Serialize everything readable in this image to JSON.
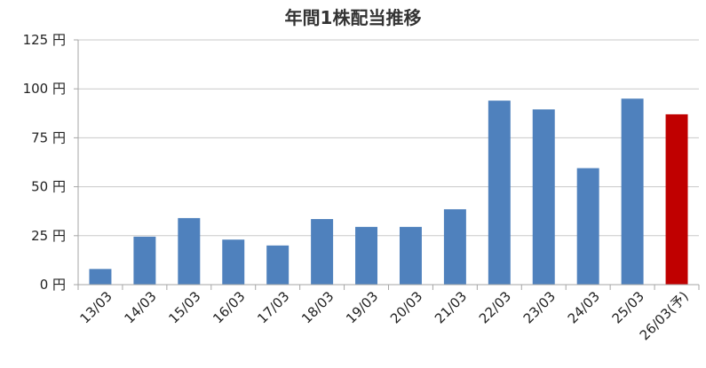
{
  "chart_data": {
    "type": "bar",
    "title": "年間1株配当推移",
    "xlabel": "",
    "ylabel": "",
    "categories": [
      "13/03",
      "14/03",
      "15/03",
      "16/03",
      "17/03",
      "18/03",
      "19/03",
      "20/03",
      "21/03",
      "22/03",
      "23/03",
      "24/03",
      "25/03",
      "26/03(予)"
    ],
    "values": [
      8,
      24.5,
      34,
      23,
      20,
      33.5,
      29.5,
      29.5,
      38.5,
      94,
      89.5,
      59.5,
      95,
      87
    ],
    "y_ticks": [
      0,
      25,
      50,
      75,
      100,
      125
    ],
    "y_tick_labels": [
      "0 円",
      "25 円",
      "50 円",
      "75 円",
      "100 円",
      "125 円"
    ],
    "ylim": [
      0,
      125
    ],
    "grid": true,
    "legend": "none",
    "colors": {
      "actual": "#4f81bd",
      "forecast": "#c00000",
      "grid": "#c8c8c8",
      "axis": "#a6a6a6"
    },
    "forecast_index": 13
  }
}
